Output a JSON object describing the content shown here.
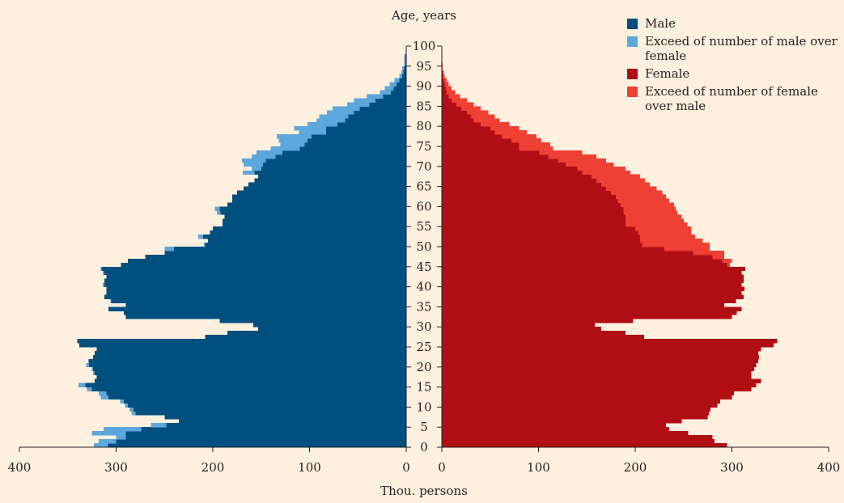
{
  "chart_data": {
    "type": "bar",
    "orientation": "horizontal",
    "title": "",
    "ylabel": "Age, years",
    "xlabel": "Thou. persons",
    "legend_position": "top-right",
    "age_ticks": [
      "0",
      "5",
      "10",
      "15",
      "20",
      "25",
      "30",
      "35",
      "40",
      "45",
      "50",
      "55",
      "60",
      "65",
      "70",
      "75",
      "80",
      "85",
      "90",
      "95",
      "100"
    ],
    "x_ticks_left": [
      "400",
      "300",
      "200",
      "100",
      "0"
    ],
    "x_ticks_right": [
      "0",
      "100",
      "200",
      "300",
      "400"
    ],
    "xlim": [
      0,
      400
    ],
    "ylim": [
      0,
      100
    ],
    "colors": {
      "male": "#00507f",
      "male_excess": "#5ca7dc",
      "female": "#b00d14",
      "female_excess": "#ee4035"
    },
    "legend": [
      {
        "key": "male",
        "label": "Male"
      },
      {
        "key": "male_excess",
        "label": "Exceed of number of male over female"
      },
      {
        "key": "female",
        "label": "Female"
      },
      {
        "key": "female_excess",
        "label": "Exceed of number of female over male"
      }
    ],
    "ages": [
      0,
      1,
      2,
      3,
      4,
      5,
      6,
      7,
      8,
      9,
      10,
      11,
      12,
      13,
      14,
      15,
      16,
      17,
      18,
      19,
      20,
      21,
      22,
      23,
      24,
      25,
      26,
      27,
      28,
      29,
      30,
      31,
      32,
      33,
      34,
      35,
      36,
      37,
      38,
      39,
      40,
      41,
      42,
      43,
      44,
      45,
      46,
      47,
      48,
      49,
      50,
      51,
      52,
      53,
      54,
      55,
      56,
      57,
      58,
      59,
      60,
      61,
      62,
      63,
      64,
      65,
      66,
      67,
      68,
      69,
      70,
      71,
      72,
      73,
      74,
      75,
      76,
      77,
      78,
      79,
      80,
      81,
      82,
      83,
      84,
      85,
      86,
      87,
      88,
      89,
      90,
      91,
      92,
      93,
      94,
      95,
      96,
      97,
      98,
      99,
      100
    ],
    "series": [
      {
        "name": "Male",
        "values": [
          309,
          300,
          290,
          290,
          274,
          248,
          235,
          250,
          280,
          282,
          288,
          292,
          308,
          310,
          325,
          332,
          322,
          320,
          322,
          324,
          328,
          328,
          324,
          322,
          320,
          338,
          340,
          208,
          185,
          153,
          158,
          193,
          290,
          292,
          308,
          290,
          305,
          312,
          310,
          310,
          312,
          312,
          310,
          312,
          315,
          295,
          288,
          270,
          250,
          240,
          208,
          205,
          210,
          203,
          200,
          190,
          190,
          188,
          192,
          193,
          185,
          180,
          180,
          175,
          168,
          163,
          157,
          153,
          157,
          150,
          148,
          145,
          135,
          128,
          110,
          105,
          102,
          98,
          83,
          83,
          71,
          63,
          60,
          54,
          48,
          38,
          32,
          24,
          16,
          13,
          10,
          7,
          4,
          3,
          2,
          1,
          1,
          1,
          0,
          0,
          0
        ]
      },
      {
        "name": "Female",
        "values": [
          295,
          282,
          280,
          255,
          235,
          232,
          248,
          275,
          276,
          278,
          285,
          288,
          300,
          302,
          320,
          325,
          330,
          320,
          320,
          323,
          325,
          327,
          328,
          327,
          330,
          343,
          347,
          209,
          190,
          165,
          158,
          198,
          300,
          305,
          310,
          292,
          304,
          312,
          310,
          313,
          310,
          312,
          312,
          310,
          314,
          295,
          290,
          280,
          260,
          230,
          207,
          205,
          205,
          203,
          200,
          190,
          190,
          190,
          188,
          188,
          185,
          182,
          180,
          175,
          170,
          165,
          160,
          155,
          145,
          140,
          128,
          120,
          110,
          101,
          80,
          80,
          72,
          62,
          55,
          50,
          40,
          33,
          30,
          26,
          20,
          15,
          10,
          7,
          5,
          4,
          3,
          2,
          1,
          1,
          0,
          0,
          0,
          0,
          0,
          0,
          0
        ]
      },
      {
        "name": "Male excess",
        "values": [
          14,
          18,
          10,
          35,
          39,
          16,
          0,
          0,
          4,
          4,
          3,
          4,
          8,
          8,
          5,
          7,
          0,
          0,
          2,
          1,
          3,
          1,
          0,
          0,
          0,
          0,
          0,
          0,
          0,
          0,
          0,
          0,
          0,
          0,
          0,
          0,
          1,
          0,
          0,
          0,
          2,
          0,
          0,
          2,
          1,
          0,
          0,
          0,
          0,
          10,
          1,
          0,
          5,
          0,
          0,
          0,
          0,
          0,
          4,
          5,
          0,
          0,
          0,
          0,
          0,
          0,
          0,
          0,
          12,
          10,
          20,
          25,
          25,
          27,
          30,
          25,
          30,
          36,
          28,
          33,
          31,
          30,
          30,
          28,
          28,
          23,
          22,
          17,
          11,
          9,
          7,
          5,
          3,
          2,
          2,
          1,
          1,
          1,
          0,
          0,
          0
        ]
      },
      {
        "name": "Female excess",
        "values": [
          0,
          0,
          0,
          0,
          0,
          0,
          13,
          25,
          0,
          0,
          0,
          0,
          0,
          0,
          0,
          0,
          8,
          0,
          0,
          0,
          0,
          0,
          4,
          5,
          10,
          5,
          7,
          1,
          5,
          12,
          0,
          5,
          10,
          13,
          2,
          2,
          0,
          0,
          0,
          3,
          0,
          0,
          2,
          0,
          0,
          0,
          2,
          10,
          10,
          0,
          0,
          0,
          0,
          0,
          0,
          0,
          0,
          2,
          0,
          0,
          0,
          2,
          0,
          0,
          2,
          2,
          3,
          2,
          0,
          0,
          0,
          0,
          0,
          0,
          0,
          0,
          0,
          0,
          0,
          0,
          0,
          0,
          0,
          0,
          0,
          0,
          0,
          0,
          0,
          0,
          0,
          0,
          0,
          0,
          0,
          0,
          0,
          0,
          0,
          0,
          0
        ]
      }
    ],
    "male_plus_excess_note": "male bar total = Male + Male excess",
    "female_totals_with_excess": [
      295,
      282,
      280,
      255,
      235,
      232,
      248,
      275,
      276,
      278,
      285,
      288,
      300,
      302,
      320,
      325,
      330,
      320,
      320,
      323,
      325,
      327,
      328,
      327,
      330,
      343,
      347,
      209,
      190,
      165,
      158,
      198,
      300,
      305,
      310,
      292,
      304,
      312,
      310,
      313,
      310,
      312,
      312,
      310,
      314,
      298,
      300,
      292,
      292,
      277,
      277,
      270,
      262,
      258,
      258,
      254,
      250,
      248,
      244,
      242,
      240,
      235,
      232,
      228,
      222,
      215,
      210,
      205,
      195,
      190,
      178,
      170,
      160,
      145,
      115,
      112,
      103,
      98,
      88,
      80,
      70,
      60,
      55,
      48,
      40,
      33,
      26,
      19,
      14,
      10,
      7,
      5,
      3,
      2,
      1,
      1,
      0,
      0,
      0,
      0,
      0
    ],
    "female_base_values": [
      295,
      282,
      280,
      255,
      235,
      232,
      248,
      275,
      276,
      278,
      285,
      288,
      300,
      302,
      320,
      325,
      330,
      320,
      320,
      323,
      325,
      327,
      328,
      327,
      330,
      343,
      347,
      209,
      190,
      165,
      158,
      198,
      300,
      305,
      310,
      292,
      304,
      312,
      310,
      313,
      310,
      312,
      312,
      310,
      314,
      295,
      290,
      280,
      260,
      230,
      207,
      205,
      205,
      203,
      200,
      190,
      190,
      190,
      188,
      188,
      185,
      182,
      180,
      175,
      170,
      165,
      160,
      155,
      145,
      140,
      128,
      120,
      110,
      101,
      80,
      80,
      72,
      62,
      55,
      50,
      40,
      33,
      30,
      26,
      20,
      15,
      10,
      7,
      5,
      4,
      3,
      2,
      1,
      1,
      0,
      0,
      0,
      0,
      0,
      0,
      0
    ]
  }
}
